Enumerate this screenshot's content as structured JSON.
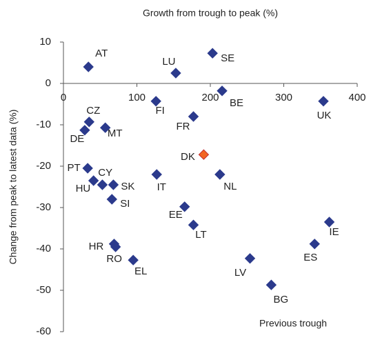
{
  "chart_data": {
    "type": "scatter",
    "title": "Growth from trough to peak (%)",
    "ylabel": "Change from peak to latest data (%)",
    "annotation": "Previous trough",
    "labels": [
      "AT",
      "LU",
      "SE",
      "BE",
      "FI",
      "UK",
      "FR",
      "CZ",
      "MT",
      "DE",
      "DK",
      "PT",
      "IT",
      "NL",
      "CY",
      "HU",
      "SK",
      "SI",
      "EE",
      "LT",
      "IE",
      "HR",
      "RO",
      "ES",
      "LV",
      "EL",
      "BG"
    ],
    "x": [
      34,
      153,
      203,
      216,
      126,
      354,
      177,
      35,
      57,
      29,
      191,
      33,
      127,
      213,
      41,
      53,
      68,
      66,
      165,
      177,
      362,
      69,
      71,
      342,
      254,
      95,
      283
    ],
    "y": [
      4,
      2.5,
      7.3,
      -1.8,
      -4.3,
      -4.3,
      -8,
      -9.3,
      -10.7,
      -11.3,
      -17.2,
      -20.5,
      -22,
      -22,
      -23.5,
      -24.5,
      -24.5,
      -28,
      -29.8,
      -34.2,
      -33.5,
      -38.8,
      -39.5,
      -38.8,
      -42.3,
      -42.7,
      -48.7
    ],
    "colors": [
      "#2b3a8c",
      "#2b3a8c",
      "#2b3a8c",
      "#2b3a8c",
      "#2b3a8c",
      "#2b3a8c",
      "#2b3a8c",
      "#2b3a8c",
      "#2b3a8c",
      "#2b3a8c",
      "#f26522",
      "#2b3a8c",
      "#2b3a8c",
      "#2b3a8c",
      "#2b3a8c",
      "#2b3a8c",
      "#2b3a8c",
      "#2b3a8c",
      "#2b3a8c",
      "#2b3a8c",
      "#2b3a8c",
      "#2b3a8c",
      "#2b3a8c",
      "#2b3a8c",
      "#2b3a8c",
      "#2b3a8c",
      "#2b3a8c"
    ],
    "xlim": [
      0,
      400
    ],
    "xticks": [
      0,
      100,
      200,
      300,
      400
    ],
    "ylim": [
      -60,
      10
    ],
    "yticks": [
      -60,
      -50,
      -40,
      -30,
      -20,
      -10,
      0,
      10
    ],
    "grid": false
  }
}
